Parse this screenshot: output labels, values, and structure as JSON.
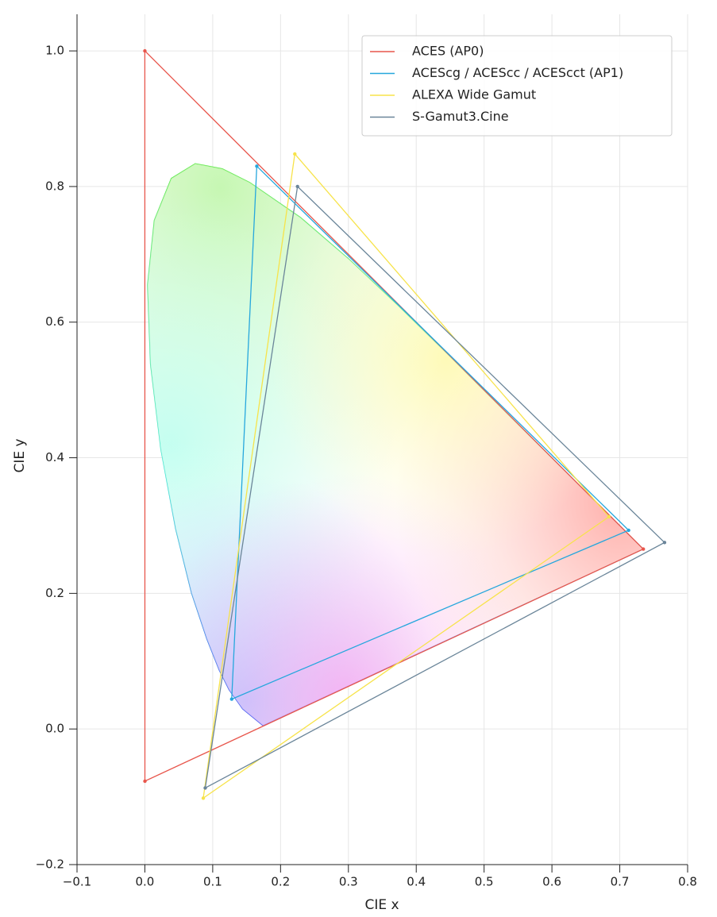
{
  "chart_data": {
    "type": "polygon",
    "xlabel": "CIE x",
    "ylabel": "CIE y",
    "xlim": [
      -0.1,
      0.8
    ],
    "ylim": [
      -0.2,
      1.054
    ],
    "xticks": [
      {
        "value": -0.1,
        "label": "−0.1"
      },
      {
        "value": 0,
        "label": "0.0"
      },
      {
        "value": 0.1,
        "label": "0.1"
      },
      {
        "value": 0.2,
        "label": "0.2"
      },
      {
        "value": 0.3,
        "label": "0.3"
      },
      {
        "value": 0.4,
        "label": "0.4"
      },
      {
        "value": 0.5,
        "label": "0.5"
      },
      {
        "value": 0.6,
        "label": "0.6"
      },
      {
        "value": 0.7,
        "label": "0.7"
      },
      {
        "value": 0.8,
        "label": "0.8"
      }
    ],
    "yticks": [
      {
        "value": -0.2,
        "label": "−0.2"
      },
      {
        "value": 0,
        "label": "0.0"
      },
      {
        "value": 0.2,
        "label": "0.2"
      },
      {
        "value": 0.4,
        "label": "0.4"
      },
      {
        "value": 0.6,
        "label": "0.6"
      },
      {
        "value": 0.8,
        "label": "0.8"
      },
      {
        "value": 1,
        "label": "1.0"
      }
    ],
    "grid": true,
    "legend": "upper right",
    "locus": {
      "x": [
        0.1741,
        0.144,
        0.1241,
        0.1096,
        0.0913,
        0.0687,
        0.0454,
        0.0235,
        0.0082,
        0.0039,
        0.0139,
        0.0389,
        0.0743,
        0.1142,
        0.1547,
        0.2296,
        0.3016,
        0.3731,
        0.4441,
        0.5125,
        0.5752,
        0.627,
        0.6915,
        0.719,
        0.7347
      ],
      "y": [
        0.005,
        0.0297,
        0.0578,
        0.0868,
        0.1327,
        0.2007,
        0.295,
        0.4127,
        0.5384,
        0.6548,
        0.7502,
        0.812,
        0.8338,
        0.8262,
        0.8059,
        0.7543,
        0.6923,
        0.6245,
        0.5547,
        0.4866,
        0.4242,
        0.3725,
        0.3083,
        0.2809,
        0.2653
      ]
    },
    "series": [
      {
        "name": "ACES (AP0)",
        "color": "#e8564c",
        "x": [
          0.7347,
          0.0,
          0.0001
        ],
        "y": [
          0.2653,
          1.0,
          -0.077
        ]
      },
      {
        "name": "ACEScg / ACEScc / ACEScct (AP1)",
        "color": "#26a7dd",
        "x": [
          0.713,
          0.165,
          0.128
        ],
        "y": [
          0.293,
          0.83,
          0.044
        ]
      },
      {
        "name": "ALEXA Wide Gamut",
        "color": "#f7e34a",
        "x": [
          0.684,
          0.221,
          0.0861
        ],
        "y": [
          0.313,
          0.848,
          -0.102
        ]
      },
      {
        "name": "S-Gamut3.Cine",
        "color": "#6a8599",
        "x": [
          0.766,
          0.225,
          0.089
        ],
        "y": [
          0.275,
          0.8,
          -0.087
        ]
      }
    ]
  }
}
